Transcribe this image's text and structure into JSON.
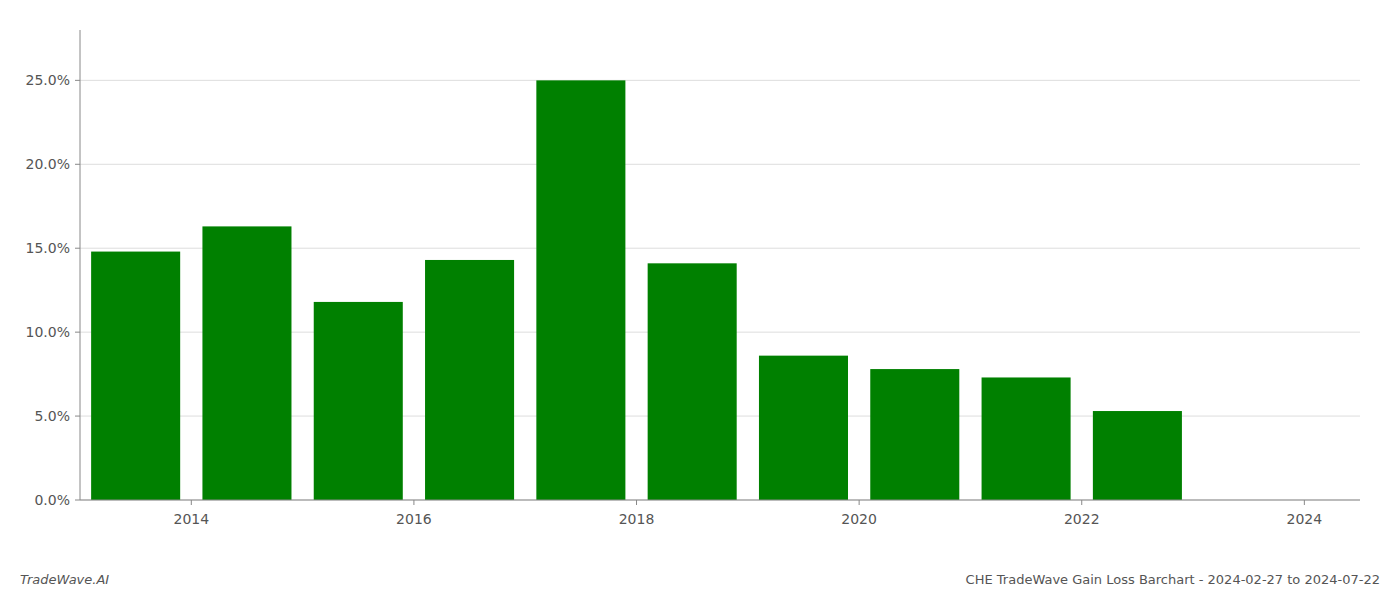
{
  "chart_data": {
    "type": "bar",
    "x": [
      2013.5,
      2014.5,
      2015.5,
      2016.5,
      2017.5,
      2018.5,
      2019.5,
      2020.5,
      2021.5,
      2022.5,
      2023.5
    ],
    "values": [
      0.148,
      0.163,
      0.118,
      0.143,
      0.25,
      0.141,
      0.086,
      0.078,
      0.073,
      0.053,
      0.0
    ],
    "color": "#008000",
    "xlim": [
      2013.0,
      2024.5
    ],
    "xticks": [
      2014,
      2016,
      2018,
      2020,
      2022,
      2024
    ],
    "ylim": [
      0,
      0.28
    ],
    "yticks": [
      {
        "value": 0.0,
        "label": "0.0%"
      },
      {
        "value": 0.05,
        "label": "5.0%"
      },
      {
        "value": 0.1,
        "label": "10.0%"
      },
      {
        "value": 0.15,
        "label": "15.0%"
      },
      {
        "value": 0.2,
        "label": "20.0%"
      },
      {
        "value": 0.25,
        "label": "25.0%"
      }
    ],
    "grid": true,
    "annotations": [
      "TradeWave.AI",
      "CHE TradeWave Gain Loss Barchart - 2024-02-27 to 2024-07-22"
    ]
  }
}
